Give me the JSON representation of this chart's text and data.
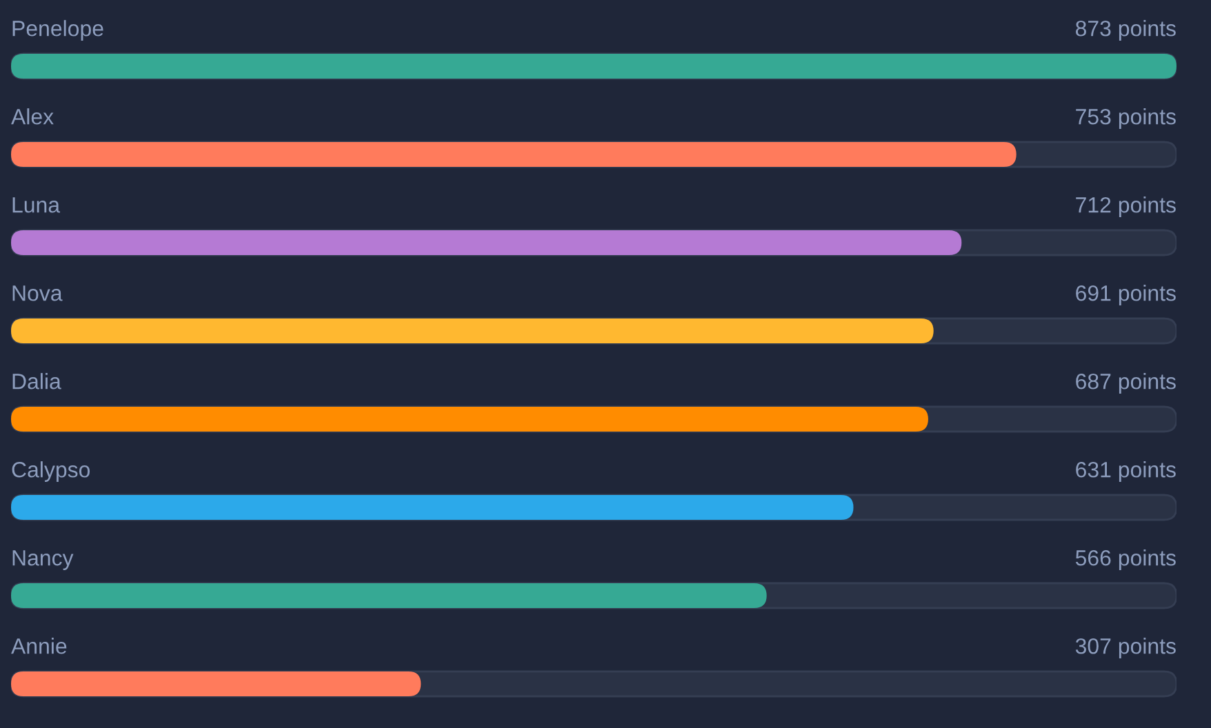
{
  "chart_data": {
    "type": "bar",
    "orientation": "horizontal",
    "categories": [
      "Penelope",
      "Alex",
      "Luna",
      "Nova",
      "Dalia",
      "Calypso",
      "Nancy",
      "Annie"
    ],
    "values": [
      873,
      753,
      712,
      691,
      687,
      631,
      566,
      307
    ],
    "colors": [
      "#36a994",
      "#ff7b5c",
      "#b57ad4",
      "#ffb830",
      "#ff8c00",
      "#2ca9ea",
      "#36a994",
      "#ff7b5c"
    ],
    "value_labels": [
      "873 points",
      "753 points",
      "712 points",
      "691 points",
      "687 points",
      "631 points",
      "566 points",
      "307 points"
    ],
    "xlim": [
      0,
      873
    ]
  }
}
